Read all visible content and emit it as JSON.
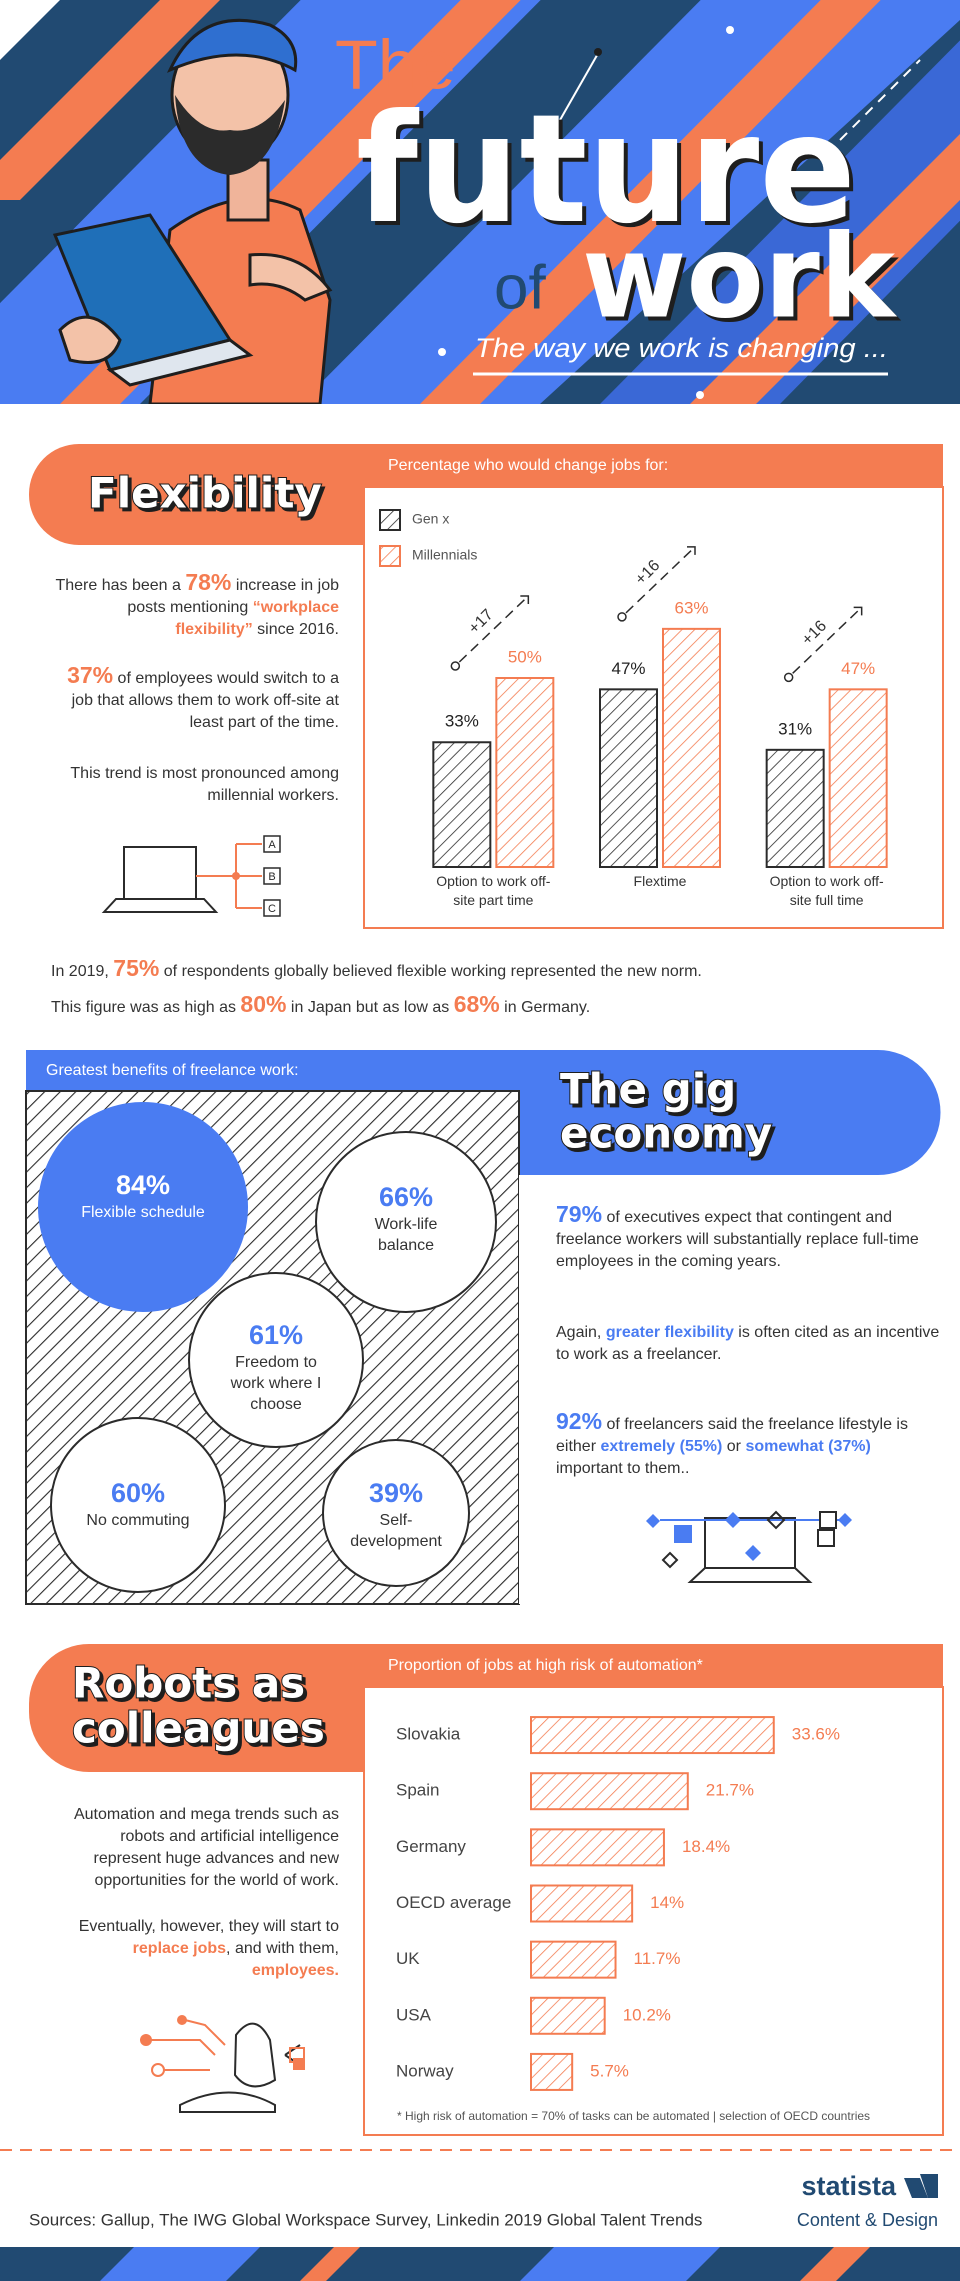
{
  "header": {
    "title_lines": [
      "The",
      "future",
      "of",
      "work"
    ],
    "subtitle": "The way we work is changing ..."
  },
  "flexibility": {
    "title": "Flexibility",
    "paragraphs": [
      [
        "There has been a ",
        "78%",
        " increase in job posts mentioning ",
        "“workplace flexibility”",
        " since 2016."
      ],
      [
        "37%",
        " of employees would switch to a job that allows them to work off-site at least part of the time."
      ],
      [
        "This trend is most pronounced among millennial workers."
      ]
    ],
    "diagram_labels": [
      "A",
      "B",
      "C"
    ],
    "stat_lines": [
      [
        "In 2019, ",
        "75%",
        " of respondents globally believed flexible working represented the new norm."
      ],
      [
        "This figure was as high as ",
        "80%",
        " in Japan but as low as ",
        "68%",
        " in Germany."
      ]
    ]
  },
  "gig_economy": {
    "title_lines": [
      "The gig",
      "economy"
    ],
    "benefits_title": "Greatest benefits of freelance work:",
    "benefits": [
      {
        "value": "84%",
        "label": "Flexible schedule"
      },
      {
        "value": "66%",
        "label": "Work-life balance"
      },
      {
        "value": "61%",
        "label": "Freedom to work where I choose"
      },
      {
        "value": "60%",
        "label": "No commuting"
      },
      {
        "value": "39%",
        "label": "Self-development"
      }
    ],
    "paragraphs": [
      [
        "79%",
        " of executives expect that contingent and freelance workers will substantially replace full-time employees in the coming years."
      ],
      [
        "Again, ",
        "greater flexibility",
        " is often cited as an incentive to work as a freelancer."
      ],
      [
        "92%",
        " of freelancers said the freelance lifestyle is either ",
        "extremely (55%)",
        " or ",
        "somewhat (37%)",
        " important to them.."
      ]
    ]
  },
  "robots": {
    "title_lines": [
      "Robots as",
      "colleagues"
    ],
    "paragraphs": [
      [
        "Automation and mega trends such as robots and artificial intelligence represent huge advances and new opportunities for the world of work."
      ],
      [
        "Eventually, however, they will start to ",
        "replace jobs",
        ", and with them, ",
        "employees."
      ]
    ]
  },
  "chart_data": [
    {
      "type": "bar",
      "title": "Percentage who would change jobs for:",
      "categories": [
        "Option to work off-site part time",
        "Flextime",
        "Option to work off-site full time"
      ],
      "series": [
        {
          "name": "Gen x",
          "color": "#2b2b2b",
          "values": [
            33,
            47,
            31
          ],
          "value_labels": [
            "33%",
            "47%",
            "31%"
          ]
        },
        {
          "name": "Millennials",
          "color": "#f47c51",
          "values": [
            50,
            63,
            47
          ],
          "value_labels": [
            "50%",
            "63%",
            "47%"
          ]
        }
      ],
      "annotations": [
        "+17",
        "+16",
        "+16"
      ],
      "ylim": [
        0,
        100
      ]
    },
    {
      "type": "hbar",
      "title": "Proportion of jobs at high risk of automation*",
      "categories": [
        "Slovakia",
        "Spain",
        "Germany",
        "OECD average",
        "UK",
        "USA",
        "Norway"
      ],
      "values": [
        33.6,
        21.7,
        18.4,
        14,
        11.7,
        10.2,
        5.7
      ],
      "value_labels": [
        "33.6%",
        "21.7%",
        "18.4%",
        "14%",
        "11.7%",
        "10.2%",
        "5.7%"
      ],
      "color": "#f47c51",
      "xlim": [
        0,
        40
      ],
      "footnote": "* High risk of automation = 70% of tasks can be automated | selection of OECD countries"
    }
  ],
  "footer": {
    "sources": "Sources: Gallup, The IWG Global Workspace Survey, Linkedin 2019 Global Talent Trends",
    "brand": "statista",
    "brand_sub": "Content & Design"
  }
}
